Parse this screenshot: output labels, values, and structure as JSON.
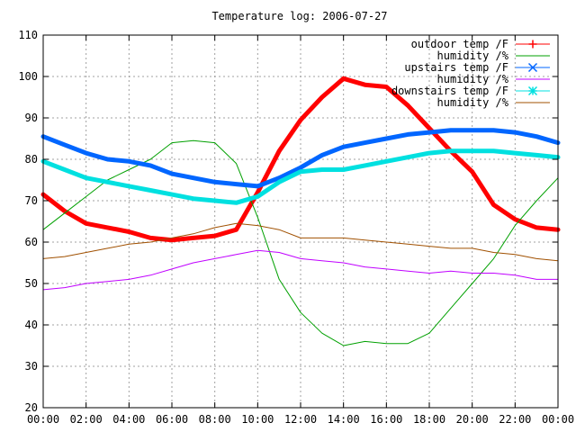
{
  "chart_data": {
    "type": "line",
    "title": "Temperature log: 2006-07-27",
    "xlabel": "",
    "ylabel": "",
    "xlim": [
      0,
      24
    ],
    "ylim": [
      20,
      110
    ],
    "grid": true,
    "legend_position": "top-right",
    "x_ticks": [
      "00:00",
      "02:00",
      "04:00",
      "06:00",
      "08:00",
      "10:00",
      "12:00",
      "14:00",
      "16:00",
      "18:00",
      "20:00",
      "22:00",
      "00:00"
    ],
    "y_ticks": [
      "20",
      "30",
      "40",
      "50",
      "60",
      "70",
      "80",
      "90",
      "100",
      "110"
    ],
    "x_hours": [
      0,
      1,
      2,
      3,
      4,
      5,
      6,
      7,
      8,
      9,
      10,
      11,
      12,
      13,
      14,
      15,
      16,
      17,
      18,
      19,
      20,
      21,
      22,
      23,
      24
    ],
    "series": [
      {
        "name": "outdoor temp /F",
        "color": "#ff0000",
        "marker": "plus",
        "line_width": 5,
        "values": [
          71.5,
          67.5,
          64.5,
          63.5,
          62.5,
          61,
          60.5,
          61,
          61.5,
          63,
          72,
          82,
          89.5,
          95,
          99.5,
          98,
          97.5,
          93,
          87.5,
          82,
          77,
          69,
          65.5,
          63.5,
          63
        ]
      },
      {
        "name": "humidity /%",
        "color": "#00a000",
        "marker": "none",
        "line_width": 1,
        "values": [
          63,
          67,
          71,
          75,
          77.5,
          80,
          84,
          84.5,
          84,
          79,
          66,
          51,
          43,
          38,
          35,
          36,
          35.5,
          35.5,
          38,
          44,
          50,
          56,
          64,
          70,
          75.5
        ]
      },
      {
        "name": "upstairs temp /F",
        "color": "#0066ff",
        "marker": "cross",
        "line_width": 5,
        "values": [
          85.5,
          83.5,
          81.5,
          80,
          79.5,
          78.5,
          76.5,
          75.5,
          74.5,
          74,
          73.5,
          75.5,
          78,
          81,
          83,
          84,
          85,
          86,
          86.5,
          87,
          87,
          87,
          86.5,
          85.5,
          84
        ]
      },
      {
        "name": "humidity /%",
        "color": "#c000ff",
        "marker": "none",
        "line_width": 1,
        "values": [
          48.5,
          49,
          50,
          50.5,
          51,
          52,
          53.5,
          55,
          56,
          57,
          58,
          57.5,
          56,
          55.5,
          55,
          54,
          53.5,
          53,
          52.5,
          53,
          52.5,
          52.5,
          52,
          51,
          51
        ]
      },
      {
        "name": "downstairs temp /F",
        "color": "#00e0e0",
        "marker": "star",
        "line_width": 5,
        "values": [
          79.5,
          77.5,
          75.5,
          74.5,
          73.5,
          72.5,
          71.5,
          70.5,
          70,
          69.5,
          71,
          74.5,
          77,
          77.5,
          77.5,
          78.5,
          79.5,
          80.5,
          81.5,
          82,
          82,
          82,
          81.5,
          81,
          80.5
        ]
      },
      {
        "name": "humidity /%",
        "color": "#a05000",
        "marker": "none",
        "line_width": 1,
        "values": [
          56,
          56.5,
          57.5,
          58.5,
          59.5,
          60,
          61,
          62,
          63.5,
          64.5,
          64,
          63,
          61,
          61,
          61,
          60.5,
          60,
          59.5,
          59,
          58.5,
          58.5,
          57.5,
          57,
          56,
          55.5
        ]
      }
    ]
  }
}
